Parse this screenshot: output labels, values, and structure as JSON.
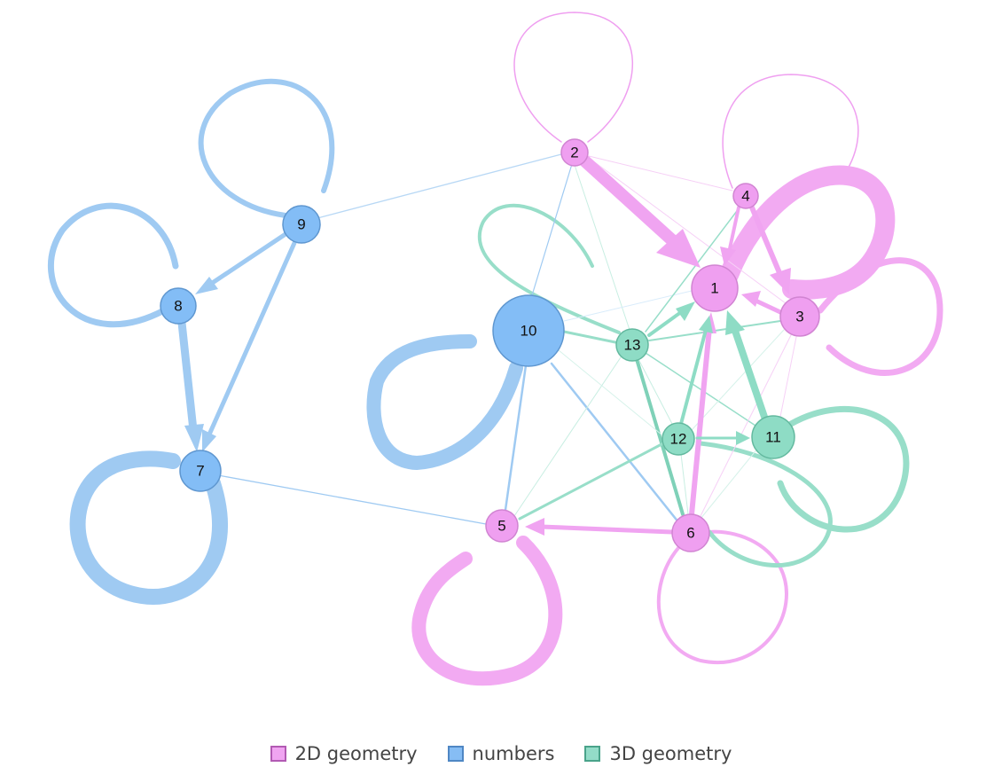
{
  "colors": {
    "2d": "#ef9ff0",
    "numbers": "#83bdf6",
    "3d": "#8edcc5"
  },
  "legend": [
    {
      "label": "2D geometry",
      "color": "#f0a4f1",
      "border": "#b25ab3"
    },
    {
      "label": "numbers",
      "color": "#86bdf4",
      "border": "#4f87c4"
    },
    {
      "label": "3D geometry",
      "color": "#93dcc8",
      "border": "#4aa38a"
    }
  ],
  "nodes": [
    {
      "id": "1",
      "group": "2d"
    },
    {
      "id": "2",
      "group": "2d"
    },
    {
      "id": "3",
      "group": "2d"
    },
    {
      "id": "4",
      "group": "2d"
    },
    {
      "id": "5",
      "group": "2d"
    },
    {
      "id": "6",
      "group": "2d"
    },
    {
      "id": "7",
      "group": "numbers"
    },
    {
      "id": "8",
      "group": "numbers"
    },
    {
      "id": "9",
      "group": "numbers"
    },
    {
      "id": "10",
      "group": "numbers"
    },
    {
      "id": "11",
      "group": "3d"
    },
    {
      "id": "12",
      "group": "3d"
    },
    {
      "id": "13",
      "group": "3d"
    }
  ]
}
